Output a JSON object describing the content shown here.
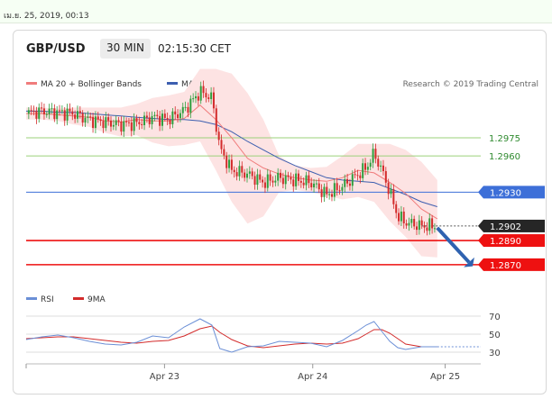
{
  "topbar": {
    "timestamp": "เม.ย. 25, 2019, 00:13"
  },
  "header": {
    "pair": "GBP/USD",
    "interval": "30 MIN",
    "time": "02:15:30 CET"
  },
  "legend": {
    "ma20": "MA 20 + Bollinger Bands",
    "ma50": "MA 50",
    "credit": "Research © 2019 Trading Central",
    "rsi": "RSI",
    "rsi_ma": "9MA"
  },
  "colors": {
    "ma20": "#f07c7c",
    "ma50": "#3d5fb0",
    "bollinger": "#fde3e3",
    "up": "#2e9e3e",
    "down": "#d32b2b",
    "support": "#ee1111",
    "resistance": "#9bd07a",
    "pivot": "#3d6fd8",
    "arrow": "#2f62b0",
    "rsi": "#6b8fd6"
  },
  "chart_data": [
    {
      "type": "line",
      "title": "GBP/USD",
      "x_ticks": [
        "Apr 23",
        "Apr 24",
        "Apr 25"
      ],
      "ylim": [
        1.2855,
        1.301
      ],
      "price_levels": [
        {
          "value": 1.2975,
          "label": "1.2975",
          "kind": "resistance"
        },
        {
          "value": 1.296,
          "label": "1.2960",
          "kind": "resistance"
        },
        {
          "value": 1.293,
          "label": "1.2930",
          "kind": "pivot"
        },
        {
          "value": 1.2902,
          "label": "1.2902",
          "kind": "last"
        },
        {
          "value": 1.289,
          "label": "1.2890",
          "kind": "support"
        },
        {
          "value": 1.287,
          "label": "1.2870",
          "kind": "support"
        }
      ],
      "series": [
        {
          "name": "MA 20 + Bollinger Bands",
          "x": [
            0,
            8,
            16,
            24,
            32,
            40,
            48,
            56,
            64,
            72,
            80,
            88,
            96,
            104,
            112,
            120,
            128,
            136,
            144,
            152,
            160,
            168,
            176,
            184,
            192,
            200,
            208
          ],
          "values": [
            1.2995,
            1.2995,
            1.2994,
            1.2993,
            1.2992,
            1.2989,
            1.2988,
            1.299,
            1.2989,
            1.2989,
            1.2991,
            1.3002,
            1.299,
            1.2975,
            1.2958,
            1.295,
            1.2945,
            1.2942,
            1.294,
            1.2939,
            1.2942,
            1.2948,
            1.2946,
            1.2938,
            1.2929,
            1.2916,
            1.2908
          ],
          "upper": [
            1.3,
            1.3,
            1.2999,
            1.3,
            1.3,
            1.3,
            1.3,
            1.3003,
            1.3008,
            1.301,
            1.3013,
            1.3032,
            1.3032,
            1.3028,
            1.3012,
            1.299,
            1.296,
            1.2952,
            1.295,
            1.2951,
            1.296,
            1.297,
            1.297,
            1.297,
            1.2965,
            1.2955,
            1.294
          ],
          "lower": [
            1.299,
            1.299,
            1.2989,
            1.2986,
            1.2984,
            1.2979,
            1.2976,
            1.2977,
            1.2971,
            1.2968,
            1.2969,
            1.2972,
            1.2948,
            1.2922,
            1.2904,
            1.291,
            1.293,
            1.2932,
            1.293,
            1.2927,
            1.2924,
            1.2926,
            1.2922,
            1.2906,
            1.2893,
            1.2877,
            1.2876
          ]
        },
        {
          "name": "MA 50",
          "x": [
            0,
            8,
            16,
            24,
            32,
            40,
            48,
            56,
            64,
            72,
            80,
            88,
            96,
            104,
            112,
            120,
            128,
            136,
            144,
            152,
            160,
            168,
            176,
            184,
            192,
            200,
            208
          ],
          "values": [
            1.2997,
            1.2997,
            1.2996,
            1.2996,
            1.2995,
            1.2994,
            1.2993,
            1.2992,
            1.2991,
            1.299,
            1.299,
            1.2989,
            1.2986,
            1.298,
            1.2972,
            1.2965,
            1.2958,
            1.2952,
            1.2947,
            1.2942,
            1.294,
            1.2939,
            1.2938,
            1.2933,
            1.2928,
            1.2922,
            1.2918
          ]
        },
        {
          "name": "Close",
          "x": [
            0,
            8,
            16,
            24,
            32,
            40,
            48,
            56,
            64,
            72,
            80,
            88,
            94,
            98,
            104,
            112,
            120,
            128,
            136,
            144,
            152,
            160,
            168,
            172,
            176,
            180,
            184,
            188,
            192,
            200,
            208
          ],
          "values": [
            1.2995,
            1.2997,
            1.2996,
            1.2995,
            1.299,
            1.2988,
            1.2986,
            1.2987,
            1.2992,
            1.299,
            1.2998,
            1.3013,
            1.3008,
            1.2966,
            1.2948,
            1.2945,
            1.2938,
            1.2942,
            1.294,
            1.2938,
            1.2928,
            1.2935,
            1.2945,
            1.295,
            1.2962,
            1.2948,
            1.293,
            1.291,
            1.2905,
            1.2902,
            1.2902
          ]
        }
      ]
    },
    {
      "type": "line",
      "title": "RSI",
      "yticks": [
        30,
        50,
        70
      ],
      "ylim": [
        25,
        75
      ],
      "series": [
        {
          "name": "RSI",
          "x": [
            0,
            8,
            16,
            24,
            32,
            40,
            48,
            56,
            64,
            72,
            80,
            88,
            94,
            98,
            104,
            112,
            120,
            128,
            136,
            144,
            152,
            160,
            168,
            172,
            176,
            180,
            184,
            188,
            192,
            200,
            208
          ],
          "values": [
            44,
            47,
            49,
            46,
            42,
            39,
            38,
            41,
            48,
            46,
            58,
            67,
            60,
            34,
            30,
            36,
            37,
            42,
            41,
            40,
            36,
            43,
            54,
            60,
            64,
            53,
            42,
            35,
            33,
            36,
            36
          ]
        },
        {
          "name": "9MA",
          "x": [
            0,
            8,
            16,
            24,
            32,
            40,
            48,
            56,
            64,
            72,
            80,
            88,
            94,
            98,
            104,
            112,
            120,
            128,
            136,
            144,
            152,
            160,
            168,
            172,
            176,
            180,
            184,
            188,
            192,
            200,
            208
          ],
          "values": [
            45,
            46,
            47,
            47,
            45,
            43,
            41,
            40,
            42,
            43,
            48,
            56,
            59,
            52,
            44,
            37,
            35,
            37,
            39,
            40,
            39,
            40,
            45,
            50,
            55,
            55,
            51,
            45,
            39,
            36,
            36
          ]
        }
      ]
    }
  ]
}
